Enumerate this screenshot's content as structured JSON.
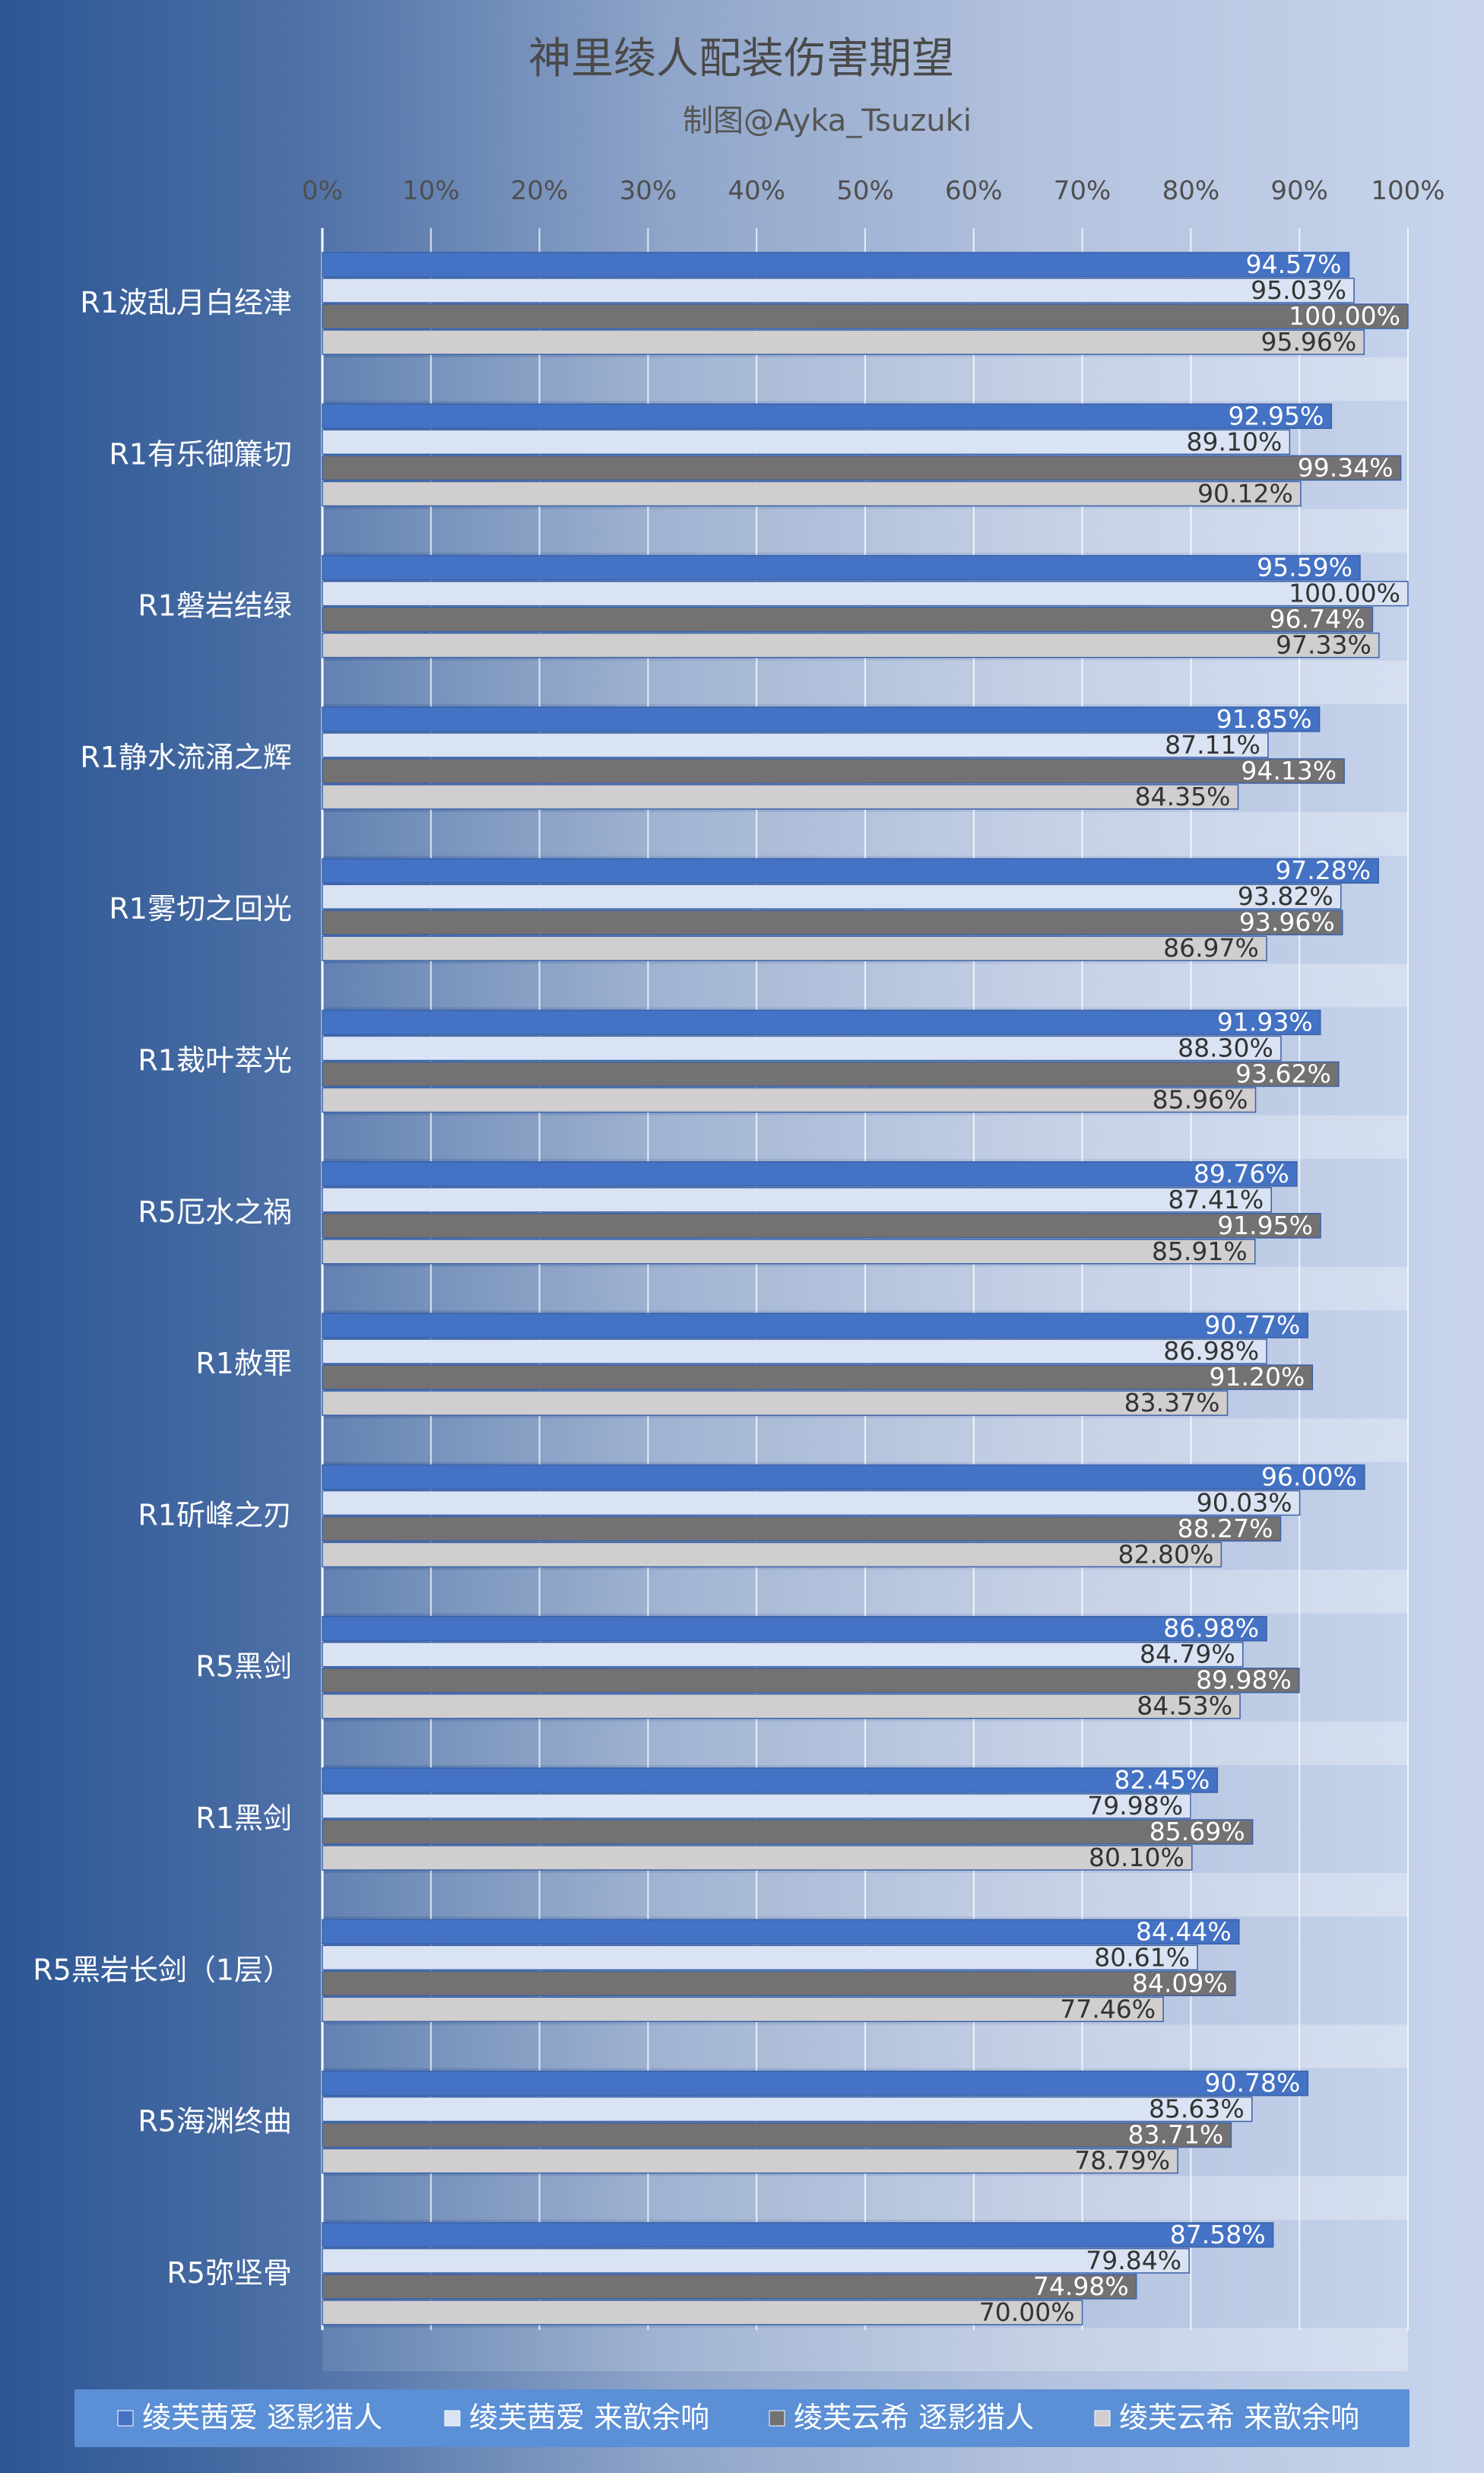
{
  "chart_data": {
    "type": "bar",
    "orientation": "horizontal",
    "title": "神里绫人配装伤害期望",
    "subtitle": "制图@Ayka_Tsuzuki",
    "xlabel": "",
    "ylabel": "",
    "xlim": [
      0,
      100
    ],
    "x_ticks": [
      "0%",
      "10%",
      "20%",
      "30%",
      "40%",
      "50%",
      "60%",
      "70%",
      "80%",
      "90%",
      "100%"
    ],
    "value_format": "percent-2dp",
    "grid": true,
    "legend_position": "bottom",
    "categories": [
      "R1波乱月白经津",
      "R1有乐御簾切",
      "R1磐岩结绿",
      "R1静水流涌之辉",
      "R1雾切之回光",
      "R1裁叶萃光",
      "R5厄水之祸",
      "R1赦罪",
      "R1斫峰之刃",
      "R5黑剑",
      "R1黑剑",
      "R5黑岩长剑（1层）",
      "R5海渊终曲",
      "R5弥坚骨"
    ],
    "series": [
      {
        "name": "绫芙茜爱 逐影猎人",
        "color": "#4472c4",
        "label_color": "#ffffff",
        "values": [
          94.57,
          92.95,
          95.59,
          91.85,
          97.28,
          91.93,
          89.76,
          90.77,
          96.0,
          86.98,
          82.45,
          84.44,
          90.78,
          87.58
        ]
      },
      {
        "name": "绫芙茜爱 来歆余响",
        "color": "#dae3f3",
        "label_color": "#333333",
        "values": [
          95.03,
          89.1,
          100.0,
          87.11,
          93.82,
          88.3,
          87.41,
          86.98,
          90.03,
          84.79,
          79.98,
          80.61,
          85.63,
          79.84
        ]
      },
      {
        "name": "绫芙云希 逐影猎人",
        "color": "#737171",
        "label_color": "#ffffff",
        "values": [
          100.0,
          99.34,
          96.74,
          94.13,
          93.96,
          93.62,
          91.95,
          91.2,
          88.27,
          89.98,
          85.69,
          84.09,
          83.71,
          74.98
        ]
      },
      {
        "name": "绫芙云希 来歆余响",
        "color": "#d0cece",
        "label_color": "#333333",
        "values": [
          95.96,
          90.12,
          97.33,
          84.35,
          86.97,
          85.96,
          85.91,
          83.37,
          82.8,
          84.53,
          80.1,
          77.46,
          78.79,
          70.0
        ]
      }
    ]
  }
}
